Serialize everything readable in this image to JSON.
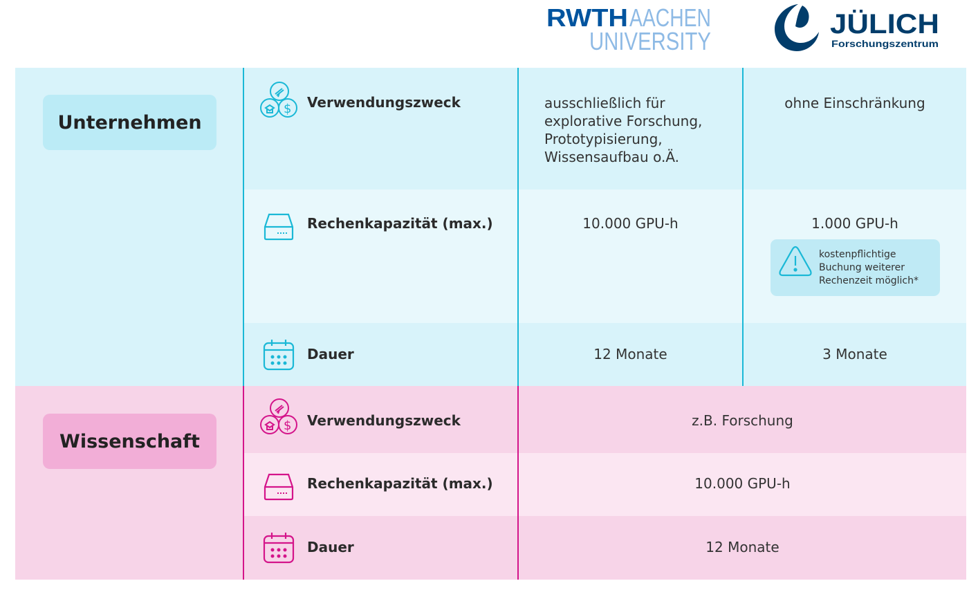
{
  "logos": {
    "rwth_line1_a": "RWTH",
    "rwth_line1_b": "AACHEN",
    "rwth_line2": "UNIVERSITY",
    "julich_name": "JÜLICH",
    "julich_sub": "Forschungszentrum"
  },
  "colors": {
    "cyan_bg_dark": "#d8f3fa",
    "cyan_bg_light": "#e8f8fc",
    "cyan_accent": "#1ab8d6",
    "pink_bg_dark": "#f7d4e8",
    "pink_bg_light": "#fbe6f2",
    "pink_accent": "#d4148a",
    "rwth_blue": "#00549f",
    "rwth_light": "#8ebae5",
    "julich_blue": "#023d6b"
  },
  "unternehmen": {
    "title": "Unternehmen",
    "rows": [
      {
        "icon": "research-funding-icon",
        "label": "Verwendungszweck",
        "rwth": [
          "ausschließlich für",
          "explorative Forschung,",
          "Prototypisierung,",
          "Wissensaufbau o.Ä."
        ],
        "julich": "ohne Einschränkung"
      },
      {
        "icon": "server-drive-icon",
        "label": "Rechenkapazität (max.)",
        "rwth": "10.000 GPU-h",
        "julich": "1.000 GPU-h"
      },
      {
        "icon": "calendar-icon",
        "label": "Dauer",
        "rwth": "12 Monate",
        "julich": "3 Monate"
      }
    ],
    "note": {
      "icon": "warning-icon",
      "lines": [
        "kostenpflichtige",
        "Buchung weiterer",
        "Rechenzeit möglich*"
      ]
    }
  },
  "wissenschaft": {
    "title": "Wissenschaft",
    "rows": [
      {
        "icon": "research-funding-icon",
        "label": "Verwendungszweck",
        "value": "z.B. Forschung"
      },
      {
        "icon": "server-drive-icon",
        "label": "Rechenkapazität (max.)",
        "value": "10.000 GPU-h"
      },
      {
        "icon": "calendar-icon",
        "label": "Dauer",
        "value": "12 Monate"
      }
    ]
  }
}
